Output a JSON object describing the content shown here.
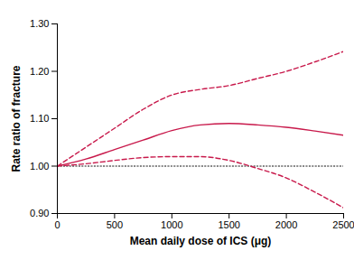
{
  "chart_data": {
    "type": "line",
    "x_label": "Mean daily dose of ICS (μg)",
    "y_label": "Rate ratio of fracture",
    "x": [
      0,
      250,
      500,
      750,
      1000,
      1250,
      1500,
      1750,
      2000,
      2250,
      2500
    ],
    "series": [
      {
        "color": "#c8194b",
        "line_style": "solid",
        "values": [
          1.0,
          1.015,
          1.035,
          1.055,
          1.075,
          1.087,
          1.09,
          1.087,
          1.082,
          1.074,
          1.065
        ]
      },
      {
        "color": "#c8194b",
        "line_style": "dashed",
        "values": [
          1.0,
          1.04,
          1.08,
          1.12,
          1.15,
          1.162,
          1.17,
          1.185,
          1.2,
          1.22,
          1.242
        ]
      },
      {
        "color": "#c8194b",
        "line_style": "dashed",
        "values": [
          1.0,
          1.005,
          1.012,
          1.018,
          1.02,
          1.02,
          1.012,
          0.995,
          0.975,
          0.945,
          0.912
        ]
      },
      {
        "color": "#000000",
        "line_style": "dotted",
        "values": [
          1.0,
          1.0,
          1.0,
          1.0,
          1.0,
          1.0,
          1.0,
          1.0,
          1.0,
          1.0,
          1.0
        ]
      }
    ],
    "xlim": [
      0,
      2500
    ],
    "xticks": [
      0,
      500,
      1000,
      1500,
      2000,
      2500
    ],
    "ylim": [
      0.9,
      1.3
    ],
    "yticks": [
      {
        "value": 0.9,
        "label": "0.90"
      },
      {
        "value": 1.0,
        "label": "1.00"
      },
      {
        "value": 1.1,
        "label": "1.10"
      },
      {
        "value": 1.2,
        "label": "1.20"
      },
      {
        "value": 1.3,
        "label": "1.30"
      }
    ],
    "grid": false
  }
}
